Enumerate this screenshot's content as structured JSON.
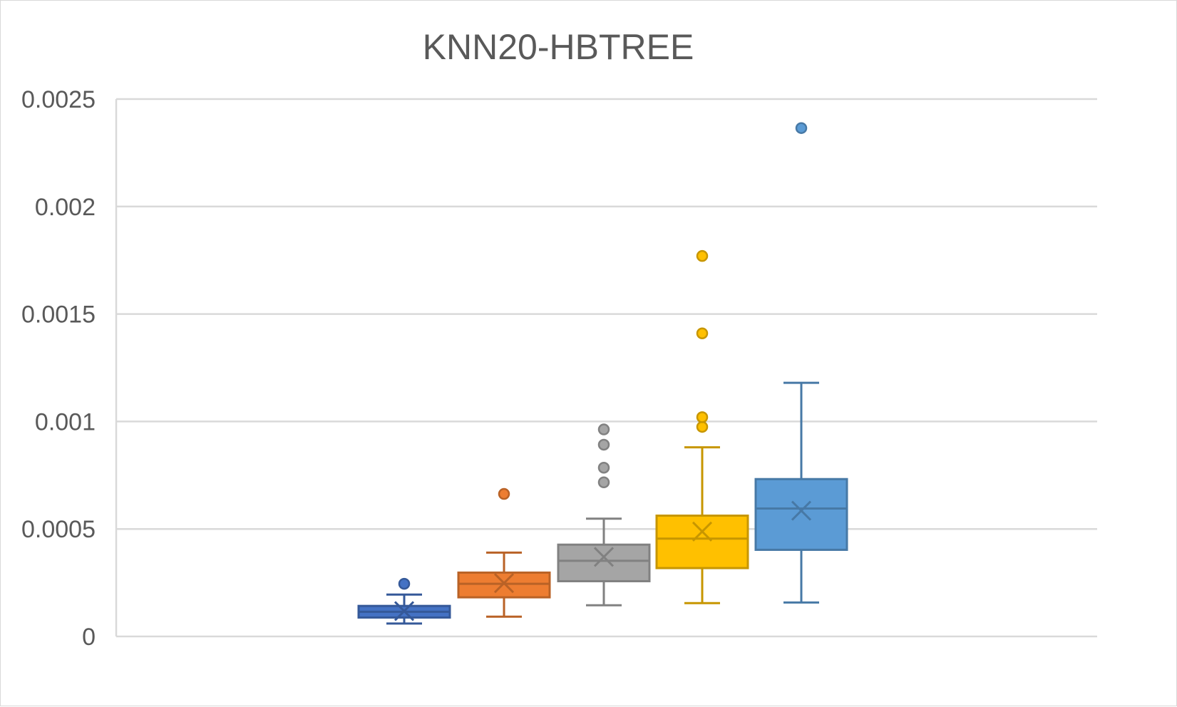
{
  "chart_data": {
    "type": "box",
    "title": "KNN20-HBTREE",
    "xlabel": "",
    "ylabel": "",
    "ylim": [
      0,
      0.0025
    ],
    "y_ticks": [
      "0",
      "0.0005",
      "0.001",
      "0.0015",
      "0.002",
      "0.0025"
    ],
    "y_tick_values": [
      0,
      0.0005,
      0.001,
      0.0015,
      0.002,
      0.0025
    ],
    "grid": true,
    "legend": "none",
    "series": [
      {
        "color": "#4472c4",
        "min": 6e-05,
        "q1": 8.8e-05,
        "median": 0.000115,
        "q3": 0.000142,
        "max": 0.000195,
        "mean": 0.000118,
        "outliers": [
          0.000245
        ]
      },
      {
        "color": "#ed7d31",
        "min": 9.2e-05,
        "q1": 0.000182,
        "median": 0.000245,
        "q3": 0.000297,
        "max": 0.00039,
        "mean": 0.000248,
        "outliers": [
          0.000663
        ]
      },
      {
        "color": "#a5a5a5",
        "min": 0.000145,
        "q1": 0.000257,
        "median": 0.000352,
        "q3": 0.000427,
        "max": 0.000548,
        "mean": 0.00037,
        "outliers": [
          0.000717,
          0.000785,
          0.000892,
          0.000963
        ]
      },
      {
        "color": "#ffc000",
        "min": 0.000155,
        "q1": 0.000318,
        "median": 0.000455,
        "q3": 0.000562,
        "max": 0.00088,
        "mean": 0.000488,
        "outliers": [
          0.000975,
          0.00102,
          0.00141,
          0.00177
        ]
      },
      {
        "color": "#5b9bd5",
        "min": 0.000158,
        "q1": 0.000403,
        "median": 0.000595,
        "q3": 0.000732,
        "max": 0.00118,
        "mean": 0.000585,
        "outliers": [
          0.002365
        ]
      }
    ]
  }
}
